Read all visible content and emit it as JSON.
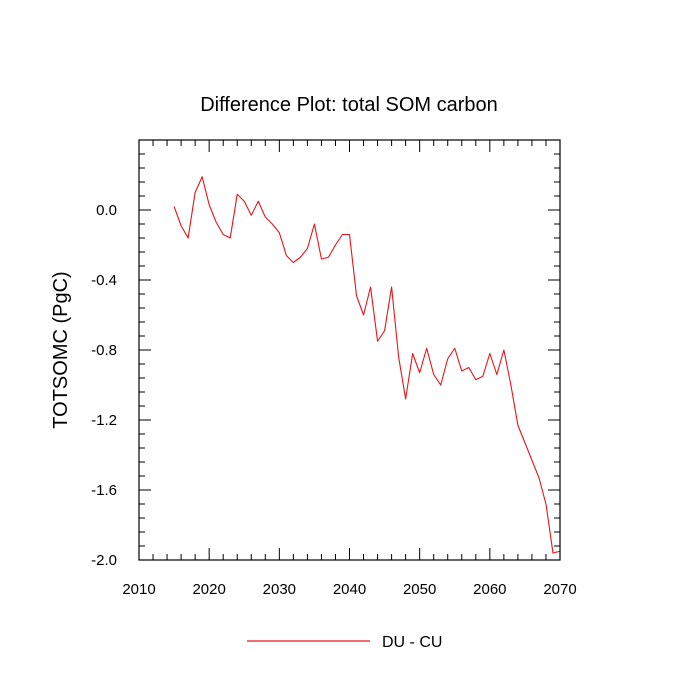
{
  "chart_data": {
    "type": "line",
    "title": "Difference Plot: total SOM carbon",
    "xlabel": "",
    "ylabel": "TOTSOMC  (PgC)",
    "xlim": [
      2010,
      2070
    ],
    "ylim": [
      -2.0,
      0.4
    ],
    "xticks": [
      2010,
      2020,
      2030,
      2040,
      2050,
      2060,
      2070
    ],
    "yticks": [
      -2.0,
      -1.6,
      -1.2,
      -0.8,
      -0.4,
      0.0
    ],
    "ytick_labels": [
      "-2.0",
      "-1.6",
      "-1.2",
      "-0.8",
      "-0.4",
      "0.0"
    ],
    "grid": false,
    "legend": "bottom-center",
    "series": [
      {
        "name": "DU - CU",
        "color": "#e8141c",
        "x": [
          2015,
          2016,
          2017,
          2018,
          2019,
          2020,
          2021,
          2022,
          2023,
          2024,
          2025,
          2026,
          2027,
          2028,
          2029,
          2030,
          2031,
          2032,
          2033,
          2034,
          2035,
          2036,
          2037,
          2038,
          2039,
          2040,
          2041,
          2042,
          2043,
          2044,
          2045,
          2046,
          2047,
          2048,
          2049,
          2050,
          2051,
          2052,
          2053,
          2054,
          2055,
          2056,
          2057,
          2058,
          2059,
          2060,
          2061,
          2062,
          2063,
          2064,
          2065,
          2066,
          2067,
          2068,
          2069,
          2070
        ],
        "values": [
          0.02,
          -0.09,
          -0.16,
          0.1,
          0.19,
          0.03,
          -0.07,
          -0.14,
          -0.16,
          0.09,
          0.05,
          -0.03,
          0.05,
          -0.04,
          -0.08,
          -0.13,
          -0.26,
          -0.3,
          -0.27,
          -0.22,
          -0.08,
          -0.28,
          -0.27,
          -0.2,
          -0.14,
          -0.14,
          -0.49,
          -0.6,
          -0.44,
          -0.75,
          -0.69,
          -0.44,
          -0.84,
          -1.08,
          -0.82,
          -0.93,
          -0.79,
          -0.94,
          -1.0,
          -0.85,
          -0.79,
          -0.92,
          -0.9,
          -0.97,
          -0.95,
          -0.82,
          -0.94,
          -0.8,
          -1.0,
          -1.23,
          -1.33,
          -1.43,
          -1.53,
          -1.68,
          -1.96,
          -1.95
        ]
      }
    ]
  }
}
